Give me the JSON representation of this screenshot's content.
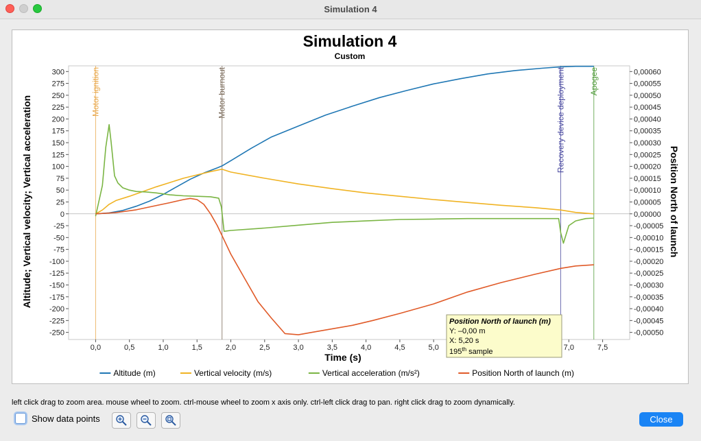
{
  "window": {
    "title": "Simulation 4"
  },
  "chart_data": {
    "type": "line",
    "title": "Simulation 4",
    "subtitle": "Custom",
    "xlabel": "Time (s)",
    "ylabel_left": "Altitude; Vertical velocity; Vertical acceleration",
    "ylabel_right": "Position North of launch",
    "xlim": [
      -0.4,
      7.9
    ],
    "ylim_left": [
      -265,
      312
    ],
    "ylim_right": [
      -0.00053,
      0.000624
    ],
    "x_ticks": [
      "0,0",
      "0,5",
      "1,0",
      "1,5",
      "2,0",
      "2,5",
      "3,0",
      "3,5",
      "4,0",
      "4,5",
      "5,0",
      "5,5",
      "6,0",
      "6,5",
      "7,0",
      "7,5"
    ],
    "y_left_ticks": [
      "300",
      "275",
      "250",
      "225",
      "200",
      "175",
      "150",
      "125",
      "100",
      "75",
      "50",
      "25",
      "0",
      "-25",
      "-50",
      "-75",
      "-100",
      "-125",
      "-150",
      "-175",
      "-200",
      "-225",
      "-250"
    ],
    "y_right_ticks": [
      "0,00060",
      "0,00055",
      "0,00050",
      "0,00045",
      "0,00040",
      "0,00035",
      "0,00030",
      "0,00025",
      "0,00020",
      "0,00015",
      "0,00010",
      "0,00005",
      "0,00000",
      "-0,00005",
      "-0,00010",
      "-0,00015",
      "-0,00020",
      "-0,00025",
      "-0,00030",
      "-0,00035",
      "-0,00040",
      "-0,00045",
      "-0,00050"
    ],
    "grid": false,
    "legend_position": "bottom",
    "events": [
      {
        "label": "Motor ignition",
        "x": 0.0,
        "color": "#e8a74a"
      },
      {
        "label": "Motor burnout",
        "x": 1.87,
        "color": "#7a6a5a"
      },
      {
        "label": "Recovery device deployment",
        "x": 6.88,
        "color": "#4a4aa0"
      },
      {
        "label": "Apogee",
        "x": 7.37,
        "color": "#4f9a3a"
      }
    ],
    "series": [
      {
        "name": "Altitude (m)",
        "axis": "left",
        "color": "#1f77b4",
        "x": [
          0,
          0.2,
          0.4,
          0.6,
          0.8,
          1.0,
          1.2,
          1.4,
          1.6,
          1.8,
          1.87,
          2.0,
          2.3,
          2.6,
          3.0,
          3.4,
          3.8,
          4.2,
          4.6,
          5.0,
          5.4,
          5.8,
          6.2,
          6.6,
          6.88,
          7.1,
          7.37
        ],
        "y": [
          0,
          2,
          7,
          16,
          27,
          41,
          57,
          73,
          86,
          97,
          101,
          112,
          138,
          162,
          185,
          208,
          227,
          245,
          260,
          274,
          285,
          295,
          302,
          307,
          310,
          311,
          311
        ]
      },
      {
        "name": "Vertical velocity (m/s)",
        "axis": "left",
        "color": "#f0b323",
        "x": [
          0,
          0.1,
          0.2,
          0.3,
          0.5,
          0.7,
          0.9,
          1.1,
          1.3,
          1.5,
          1.7,
          1.87,
          2.0,
          2.5,
          3.0,
          3.5,
          4.0,
          4.5,
          5.0,
          5.5,
          6.0,
          6.5,
          6.88,
          7.1,
          7.37
        ],
        "y": [
          0,
          8,
          20,
          28,
          37,
          47,
          57,
          66,
          75,
          82,
          89,
          94,
          88,
          75,
          63,
          53,
          44,
          37,
          30,
          24,
          18,
          13,
          8,
          3,
          0
        ]
      },
      {
        "name": "Vertical acceleration (m/s²)",
        "axis": "left",
        "color": "#7ab543",
        "x": [
          0,
          0.1,
          0.15,
          0.2,
          0.23,
          0.28,
          0.33,
          0.4,
          0.5,
          0.6,
          0.75,
          0.9,
          1.1,
          1.3,
          1.5,
          1.7,
          1.82,
          1.86,
          1.9,
          2.0,
          2.5,
          3.0,
          3.5,
          4.0,
          4.5,
          5.0,
          5.5,
          6.0,
          6.5,
          6.85,
          6.88,
          6.92,
          7.0,
          7.1,
          7.25,
          7.37
        ],
        "y": [
          -5,
          60,
          140,
          188,
          150,
          80,
          65,
          55,
          50,
          47,
          46,
          44,
          40,
          38,
          37,
          36,
          33,
          15,
          -37,
          -35,
          -30,
          -24,
          -18,
          -15,
          -12,
          -11,
          -10,
          -10,
          -10,
          -10,
          -40,
          -62,
          -25,
          -15,
          -10,
          -9
        ]
      },
      {
        "name": "Position North of launch (m)",
        "axis": "right",
        "color": "#e05a28",
        "x": [
          0,
          0.3,
          0.6,
          0.9,
          1.1,
          1.3,
          1.4,
          1.5,
          1.6,
          1.7,
          1.8,
          1.9,
          2.0,
          2.2,
          2.4,
          2.6,
          2.8,
          3.0,
          3.2,
          3.5,
          3.8,
          4.1,
          4.5,
          5.0,
          5.5,
          6.0,
          6.5,
          6.88,
          7.1,
          7.37
        ],
        "y": [
          0,
          5e-06,
          1.7e-05,
          3.5e-05,
          4.7e-05,
          6e-05,
          6.5e-05,
          6e-05,
          4e-05,
          0.0,
          -5e-05,
          -0.00011,
          -0.00017,
          -0.00027,
          -0.00037,
          -0.00044,
          -0.000505,
          -0.00051,
          -0.0005,
          -0.000485,
          -0.00047,
          -0.00045,
          -0.00042,
          -0.00038,
          -0.00033,
          -0.00029,
          -0.000255,
          -0.00023,
          -0.00022,
          -0.000215
        ]
      }
    ],
    "tooltip": {
      "title": "Position North of launch (m)",
      "y_text": "Y: –0,00 m",
      "x_text": "X: 5,20 s",
      "sample_num": "195",
      "sample_sup": "th",
      "sample_text": " sample"
    }
  },
  "help_text": "left click drag to zoom area. mouse wheel to zoom. ctrl-mouse wheel to zoom x axis only. ctrl-left click drag to pan.  right click drag to zoom dynamically.",
  "controls": {
    "show_data_points_label": "Show data points",
    "show_data_points_checked": false,
    "zoom_buttons": [
      "zoom-in-icon",
      "zoom-out-icon",
      "zoom-reset-icon"
    ],
    "close_label": "Close"
  }
}
